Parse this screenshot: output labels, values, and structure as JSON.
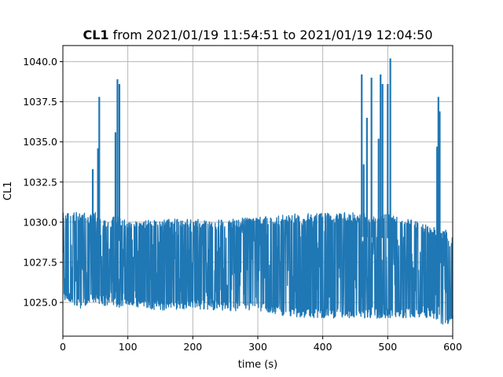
{
  "chart_data": {
    "type": "line",
    "title": {
      "bold": "CL1",
      "rest": " from 2021/01/19 11:54:51 to 2021/01/19 12:04:50"
    },
    "xlabel": "time (s)",
    "ylabel": "CL1",
    "xlim": [
      0,
      600
    ],
    "ylim": [
      1022.9,
      1041.0
    ],
    "x_ticks": [
      0,
      100,
      200,
      300,
      400,
      500,
      600
    ],
    "x_tick_labels": [
      "0",
      "100",
      "200",
      "300",
      "400",
      "500",
      "600"
    ],
    "y_ticks": [
      1025.0,
      1027.5,
      1030.0,
      1032.5,
      1035.0,
      1037.5,
      1040.0
    ],
    "y_tick_labels": [
      "1025.0",
      "1027.5",
      "1030.0",
      "1032.5",
      "1035.0",
      "1037.5",
      "1040.0"
    ],
    "grid": true,
    "color": "#1f77b4",
    "series": [
      {
        "envelope": [
          {
            "x": 0,
            "min": 1025.2,
            "max": 1030.7
          },
          {
            "x": 10,
            "min": 1025.0,
            "max": 1030.7
          },
          {
            "x": 20,
            "min": 1024.7,
            "max": 1030.6
          },
          {
            "x": 30,
            "min": 1024.6,
            "max": 1030.7
          },
          {
            "x": 40,
            "min": 1024.9,
            "max": 1030.4
          },
          {
            "x": 50,
            "min": 1025.0,
            "max": 1030.6
          },
          {
            "x": 60,
            "min": 1024.8,
            "max": 1030.2
          },
          {
            "x": 70,
            "min": 1024.8,
            "max": 1030.1
          },
          {
            "x": 80,
            "min": 1024.7,
            "max": 1030.4
          },
          {
            "x": 90,
            "min": 1024.6,
            "max": 1030.3
          },
          {
            "x": 100,
            "min": 1024.8,
            "max": 1030.0
          },
          {
            "x": 150,
            "min": 1024.5,
            "max": 1030.2
          },
          {
            "x": 200,
            "min": 1024.6,
            "max": 1030.2
          },
          {
            "x": 250,
            "min": 1024.5,
            "max": 1030.2
          },
          {
            "x": 300,
            "min": 1024.4,
            "max": 1030.3
          },
          {
            "x": 350,
            "min": 1024.1,
            "max": 1030.5
          },
          {
            "x": 400,
            "min": 1024.0,
            "max": 1030.6
          },
          {
            "x": 450,
            "min": 1024.0,
            "max": 1030.6
          },
          {
            "x": 500,
            "min": 1024.0,
            "max": 1030.5
          },
          {
            "x": 550,
            "min": 1024.1,
            "max": 1030.0
          },
          {
            "x": 570,
            "min": 1024.0,
            "max": 1029.7
          },
          {
            "x": 590,
            "min": 1023.5,
            "max": 1029.5
          },
          {
            "x": 600,
            "min": 1024.0,
            "max": 1029.0
          }
        ],
        "spikes": [
          {
            "x": 46,
            "y": 1033.3
          },
          {
            "x": 54,
            "y": 1034.6
          },
          {
            "x": 56,
            "y": 1037.8
          },
          {
            "x": 81,
            "y": 1035.6
          },
          {
            "x": 84,
            "y": 1038.9
          },
          {
            "x": 87,
            "y": 1038.6
          },
          {
            "x": 460,
            "y": 1039.2
          },
          {
            "x": 463,
            "y": 1033.6
          },
          {
            "x": 468,
            "y": 1036.5
          },
          {
            "x": 475,
            "y": 1039.0
          },
          {
            "x": 486,
            "y": 1035.2
          },
          {
            "x": 489,
            "y": 1039.2
          },
          {
            "x": 492,
            "y": 1038.6
          },
          {
            "x": 500,
            "y": 1038.6
          },
          {
            "x": 504,
            "y": 1040.2
          },
          {
            "x": 576,
            "y": 1034.7
          },
          {
            "x": 578,
            "y": 1037.8
          },
          {
            "x": 580,
            "y": 1036.9
          }
        ]
      }
    ]
  }
}
